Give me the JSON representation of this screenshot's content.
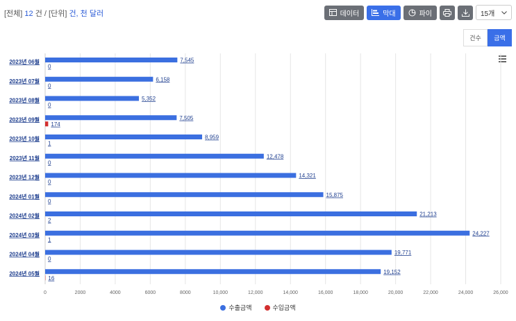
{
  "summary": {
    "prefix": "[전체]",
    "count": "12",
    "count_unit": "건 / [단위]",
    "unit": "건, 천 달러"
  },
  "toolbar": {
    "data_label": "데이터",
    "bar_label": "막대",
    "pie_label": "파이",
    "page_size": "15개"
  },
  "toggle": {
    "count_label": "건수",
    "amount_label": "금액"
  },
  "colors": {
    "export": "#3b6fe0",
    "import": "#d32f2f"
  },
  "chart_data": {
    "type": "bar",
    "orientation": "horizontal",
    "categories": [
      "2023년 06월",
      "2023년 07월",
      "2023년 08월",
      "2023년 09월",
      "2023년 10월",
      "2023년 11월",
      "2023년 12월",
      "2024년 01월",
      "2024년 02월",
      "2024년 03월",
      "2024년 04월",
      "2024년 05월"
    ],
    "series": [
      {
        "name": "수출금액",
        "values": [
          7545,
          6158,
          5352,
          7505,
          8959,
          12478,
          14321,
          15875,
          21213,
          24227,
          19771,
          19152
        ],
        "labels": [
          "7,545",
          "6,158",
          "5,352",
          "7,505",
          "8,959",
          "12,478",
          "14,321",
          "15,875",
          "21,213",
          "24,227",
          "19,771",
          "19,152"
        ]
      },
      {
        "name": "수입금액",
        "values": [
          0,
          0,
          0,
          174,
          1,
          0,
          0,
          0,
          2,
          1,
          0,
          16
        ],
        "labels": [
          "0",
          "0",
          "0",
          "174",
          "1",
          "0",
          "0",
          "0",
          "2",
          "1",
          "0",
          "16"
        ]
      }
    ],
    "xlim": [
      0,
      26000
    ],
    "xticks": [
      "0",
      "2000",
      "4000",
      "6000",
      "8000",
      "10,000",
      "12,000",
      "14,000",
      "16,000",
      "18,000",
      "20,000",
      "22,000",
      "24,000",
      "26,000"
    ],
    "legend_position": "bottom"
  }
}
